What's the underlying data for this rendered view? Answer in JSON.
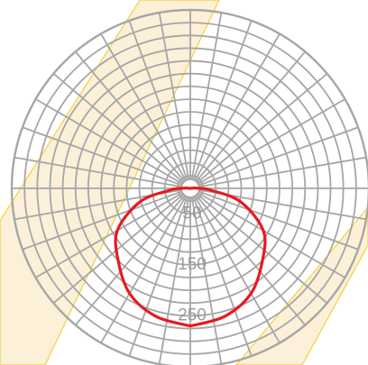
{
  "chart_data": {
    "type": "polar",
    "radial_ticks": [
      "50",
      "150",
      "250"
    ],
    "radial_values": [
      50,
      150,
      250
    ],
    "radial_max": 350,
    "ring_step": 25,
    "angle_step_deg": 10,
    "series": [
      {
        "color": "#e8191f",
        "points": [
          {
            "angle": 0,
            "r": 270
          },
          {
            "angle": 15,
            "r": 260
          },
          {
            "angle": 30,
            "r": 238
          },
          {
            "angle": 45,
            "r": 200
          },
          {
            "angle": 60,
            "r": 165
          },
          {
            "angle": 75,
            "r": 102
          },
          {
            "angle": 85,
            "r": 40
          },
          {
            "angle": 90,
            "r": 18
          },
          {
            "angle": 95,
            "r": 8
          },
          {
            "angle": 120,
            "r": 0
          },
          {
            "angle": 180,
            "r": 0
          },
          {
            "angle": 240,
            "r": 0
          },
          {
            "angle": 265,
            "r": 8
          },
          {
            "angle": 270,
            "r": 18
          },
          {
            "angle": 275,
            "r": 40
          },
          {
            "angle": 285,
            "r": 102
          },
          {
            "angle": 300,
            "r": 165
          },
          {
            "angle": 315,
            "r": 200
          },
          {
            "angle": 330,
            "r": 238
          },
          {
            "angle": 345,
            "r": 260
          },
          {
            "angle": 360,
            "r": 270
          }
        ]
      }
    ],
    "grid": true,
    "colors": {
      "grid": "#a6a6a6",
      "band_fill": "#fdf0d8",
      "band_edge": "#f2d23c",
      "curve": "#e8191f",
      "tick_text": "#9a9a9a"
    }
  }
}
